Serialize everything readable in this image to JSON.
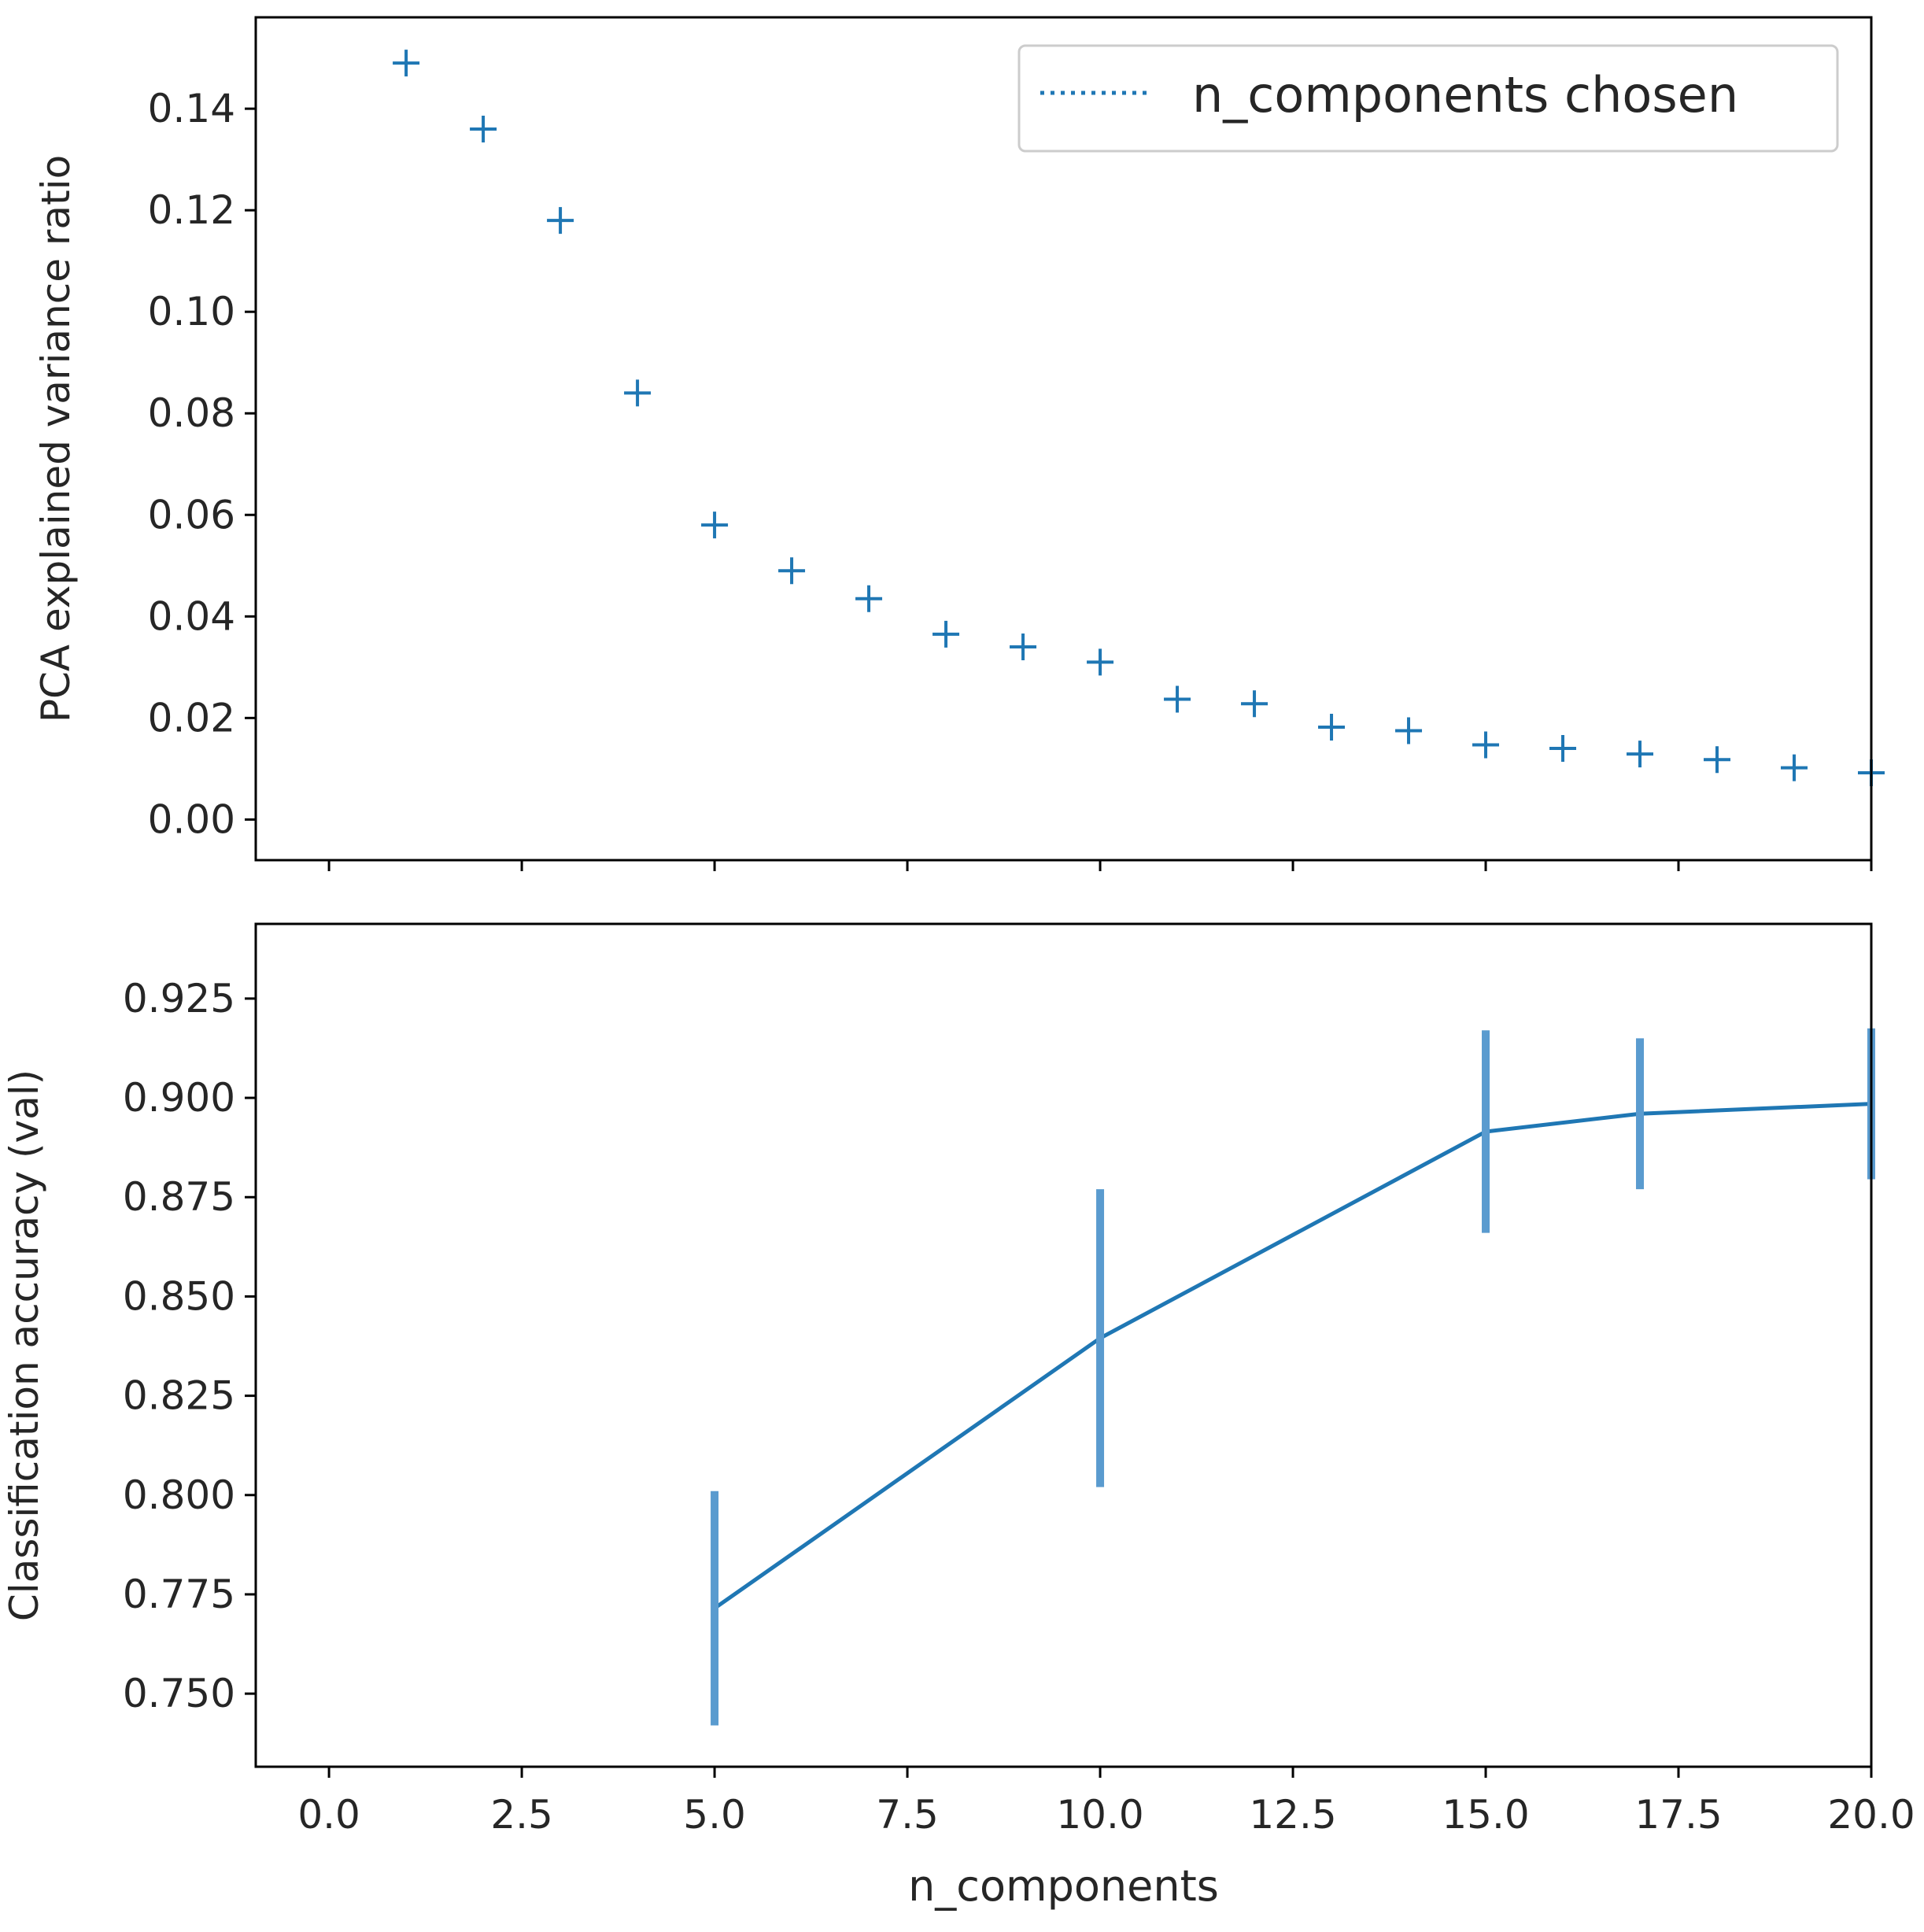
{
  "colors": {
    "series": "#1f77b4",
    "errorbar": "#5a9bcf",
    "axis": "#000000",
    "text": "#262626",
    "legend_border": "#cccccc"
  },
  "chart_data": [
    {
      "id": "variance",
      "type": "scatter",
      "marker": "+",
      "ylabel": "PCA explained variance ratio",
      "xlim": [
        -0.95,
        20.0
      ],
      "ylim": [
        -0.008,
        0.158
      ],
      "y_ticks": [
        "0.00",
        "0.02",
        "0.04",
        "0.06",
        "0.08",
        "0.10",
        "0.12",
        "0.14"
      ],
      "x": [
        1,
        2,
        3,
        4,
        5,
        6,
        7,
        8,
        9,
        10,
        11,
        12,
        13,
        14,
        15,
        16,
        17,
        18,
        19,
        20
      ],
      "y": [
        0.149,
        0.136,
        0.118,
        0.084,
        0.058,
        0.049,
        0.0435,
        0.0365,
        0.034,
        0.031,
        0.0237,
        0.0228,
        0.0182,
        0.0175,
        0.0147,
        0.014,
        0.0129,
        0.0118,
        0.0102,
        0.0092
      ],
      "legend": {
        "label": "n_components chosen",
        "style": "dotted",
        "placement": "top-right"
      }
    },
    {
      "id": "accuracy",
      "type": "line",
      "errorbars": true,
      "xlabel": "n_components",
      "ylabel": "Classification accuracy (val)",
      "xlim": [
        -0.95,
        20.0
      ],
      "ylim": [
        0.7316,
        0.9438
      ],
      "x_ticks": [
        "0.0",
        "2.5",
        "5.0",
        "7.5",
        "10.0",
        "12.5",
        "15.0",
        "17.5",
        "20.0"
      ],
      "y_ticks": [
        "0.750",
        "0.775",
        "0.800",
        "0.825",
        "0.850",
        "0.875",
        "0.900",
        "0.925"
      ],
      "x": [
        5,
        10,
        15,
        17,
        20
      ],
      "y": [
        0.7715,
        0.8395,
        0.8915,
        0.896,
        0.8985
      ],
      "yerr": [
        0.0295,
        0.0375,
        0.0255,
        0.019,
        0.019
      ]
    }
  ]
}
